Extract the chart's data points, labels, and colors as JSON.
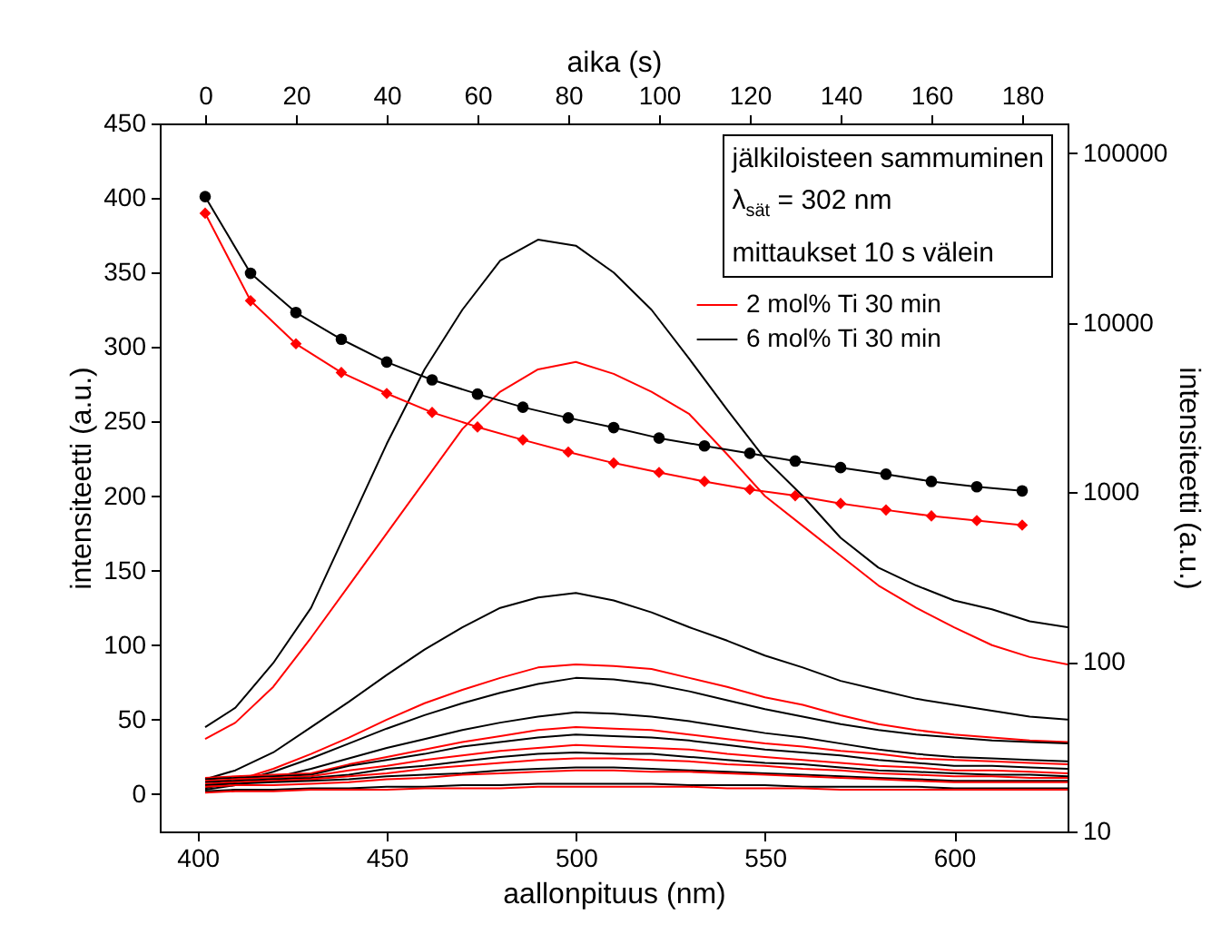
{
  "chart_data": [
    {
      "type": "line",
      "xlabel": "aallonpituus (nm)",
      "ylabel": "intensiteetti (a.u.)",
      "xlim": [
        390,
        630
      ],
      "xticks": [
        400,
        450,
        500,
        550,
        600
      ],
      "ylim": [
        -25,
        450
      ],
      "yticks": [
        0,
        50,
        100,
        150,
        200,
        250,
        300,
        350,
        400,
        450
      ],
      "grid": false,
      "legend": "top right",
      "line_style": "solid",
      "marker": "none",
      "annotations": [
        "jälkiloisteen sammuminen",
        "λ$_{sät}$ = 302 nm",
        "mittaukset 10 s välein"
      ],
      "x": [
        402,
        410,
        420,
        430,
        440,
        450,
        460,
        470,
        480,
        490,
        500,
        510,
        520,
        530,
        540,
        550,
        560,
        570,
        580,
        590,
        600,
        610,
        620,
        630
      ],
      "series": [
        {
          "name": "2 mol% Ti 30 min",
          "color": "#ff0000",
          "values": [
            37,
            48,
            72,
            105,
            140,
            175,
            210,
            245,
            270,
            285,
            290,
            282,
            270,
            255,
            228,
            200,
            180,
            160,
            140,
            125,
            112,
            100,
            92,
            87
          ]
        },
        {
          "name": "6 mol% Ti 30 min",
          "color": "#000000",
          "values": [
            45,
            58,
            88,
            125,
            180,
            235,
            285,
            325,
            358,
            372,
            368,
            350,
            325,
            292,
            258,
            225,
            200,
            172,
            152,
            140,
            130,
            124,
            116,
            112
          ]
        },
        {
          "color": "#000000",
          "values": [
            10,
            16,
            28,
            45,
            62,
            80,
            97,
            112,
            125,
            132,
            135,
            130,
            122,
            112,
            103,
            93,
            85,
            76,
            70,
            64,
            60,
            56,
            52,
            50
          ]
        },
        {
          "color": "#ff0000",
          "values": [
            5,
            9,
            17,
            27,
            38,
            50,
            61,
            70,
            78,
            85,
            87,
            86,
            84,
            78,
            72,
            65,
            60,
            53,
            47,
            43,
            40,
            38,
            36,
            35
          ]
        },
        {
          "color": "#000000",
          "values": [
            4,
            8,
            15,
            24,
            34,
            44,
            53,
            61,
            68,
            74,
            78,
            77,
            74,
            69,
            63,
            57,
            52,
            47,
            43,
            40,
            38,
            36,
            35,
            34
          ]
        },
        {
          "color": "#000000",
          "values": [
            3,
            6,
            11,
            17,
            24,
            31,
            37,
            43,
            48,
            52,
            55,
            54,
            52,
            49,
            45,
            41,
            38,
            34,
            30,
            27,
            25,
            24,
            23,
            22
          ]
        },
        {
          "color": "#ff0000",
          "values": [
            11,
            12,
            13,
            14,
            20,
            25,
            30,
            35,
            39,
            43,
            45,
            44,
            43,
            40,
            37,
            34,
            32,
            29,
            27,
            24,
            23,
            22,
            21,
            20
          ]
        },
        {
          "color": "#000000",
          "values": [
            10,
            11,
            12,
            13,
            19,
            23,
            27,
            32,
            35,
            38,
            40,
            39,
            38,
            36,
            33,
            30,
            28,
            26,
            23,
            21,
            19,
            19,
            18,
            17
          ]
        },
        {
          "color": "#ff0000",
          "values": [
            9,
            10,
            11,
            12,
            16,
            19,
            23,
            26,
            29,
            31,
            33,
            32,
            31,
            30,
            27,
            25,
            23,
            21,
            19,
            18,
            16,
            16,
            15,
            14
          ]
        },
        {
          "color": "#000000",
          "values": [
            8,
            9,
            10,
            11,
            13,
            17,
            19,
            22,
            25,
            27,
            28,
            27,
            27,
            25,
            23,
            21,
            20,
            18,
            16,
            15,
            14,
            13,
            13,
            12
          ]
        },
        {
          "color": "#ff0000",
          "values": [
            7,
            8,
            9,
            10,
            12,
            14,
            17,
            19,
            21,
            23,
            24,
            24,
            23,
            22,
            20,
            19,
            17,
            16,
            14,
            13,
            12,
            12,
            11,
            11
          ]
        },
        {
          "color": "#000000",
          "values": [
            6,
            7,
            8,
            9,
            10,
            12,
            13,
            14,
            16,
            17,
            18,
            18,
            17,
            16,
            15,
            14,
            13,
            12,
            11,
            10,
            9,
            9,
            9,
            9
          ]
        },
        {
          "color": "#ff0000",
          "values": [
            5,
            6,
            6,
            7,
            8,
            10,
            11,
            13,
            14,
            15,
            16,
            16,
            15,
            15,
            14,
            13,
            12,
            11,
            10,
            9,
            8,
            8,
            8,
            8
          ]
        },
        {
          "color": "#000000",
          "values": [
            2,
            3,
            3,
            4,
            4,
            5,
            5,
            6,
            6,
            7,
            7,
            7,
            7,
            6,
            6,
            6,
            5,
            5,
            5,
            5,
            4,
            4,
            4,
            4
          ]
        },
        {
          "color": "#ff0000",
          "values": [
            1,
            2,
            2,
            3,
            3,
            3,
            4,
            4,
            4,
            5,
            5,
            5,
            5,
            5,
            4,
            4,
            4,
            3,
            3,
            3,
            3,
            3,
            3,
            3
          ]
        }
      ]
    },
    {
      "type": "line",
      "xlabel": "aika (s)",
      "ylabel": "intensiteetti (a.u.)",
      "xlim": [
        -10,
        190
      ],
      "xticks": [
        0,
        20,
        40,
        60,
        80,
        100,
        120,
        140,
        160,
        180
      ],
      "ylim": [
        10,
        150000
      ],
      "yticks": [
        10,
        100,
        1000,
        10000,
        100000
      ],
      "log": true,
      "grid": false,
      "line_style": "solid",
      "x": [
        0,
        10,
        20,
        30,
        40,
        50,
        60,
        70,
        80,
        90,
        100,
        110,
        120,
        130,
        140,
        150,
        160,
        170,
        180
      ],
      "series": [
        {
          "color": "#000000",
          "marker": "circle",
          "values": [
            55500,
            19600,
            11500,
            8000,
            5870,
            4610,
            3800,
            3180,
            2750,
            2410,
            2090,
            1880,
            1700,
            1530,
            1400,
            1280,
            1160,
            1080,
            1020
          ]
        },
        {
          "color": "#ff0000",
          "marker": "diamond",
          "values": [
            44300,
            13500,
            7520,
            5090,
            3830,
            2960,
            2430,
            2040,
            1730,
            1490,
            1310,
            1160,
            1040,
            956,
            860,
            787,
            726,
            682,
            641
          ]
        }
      ]
    }
  ]
}
